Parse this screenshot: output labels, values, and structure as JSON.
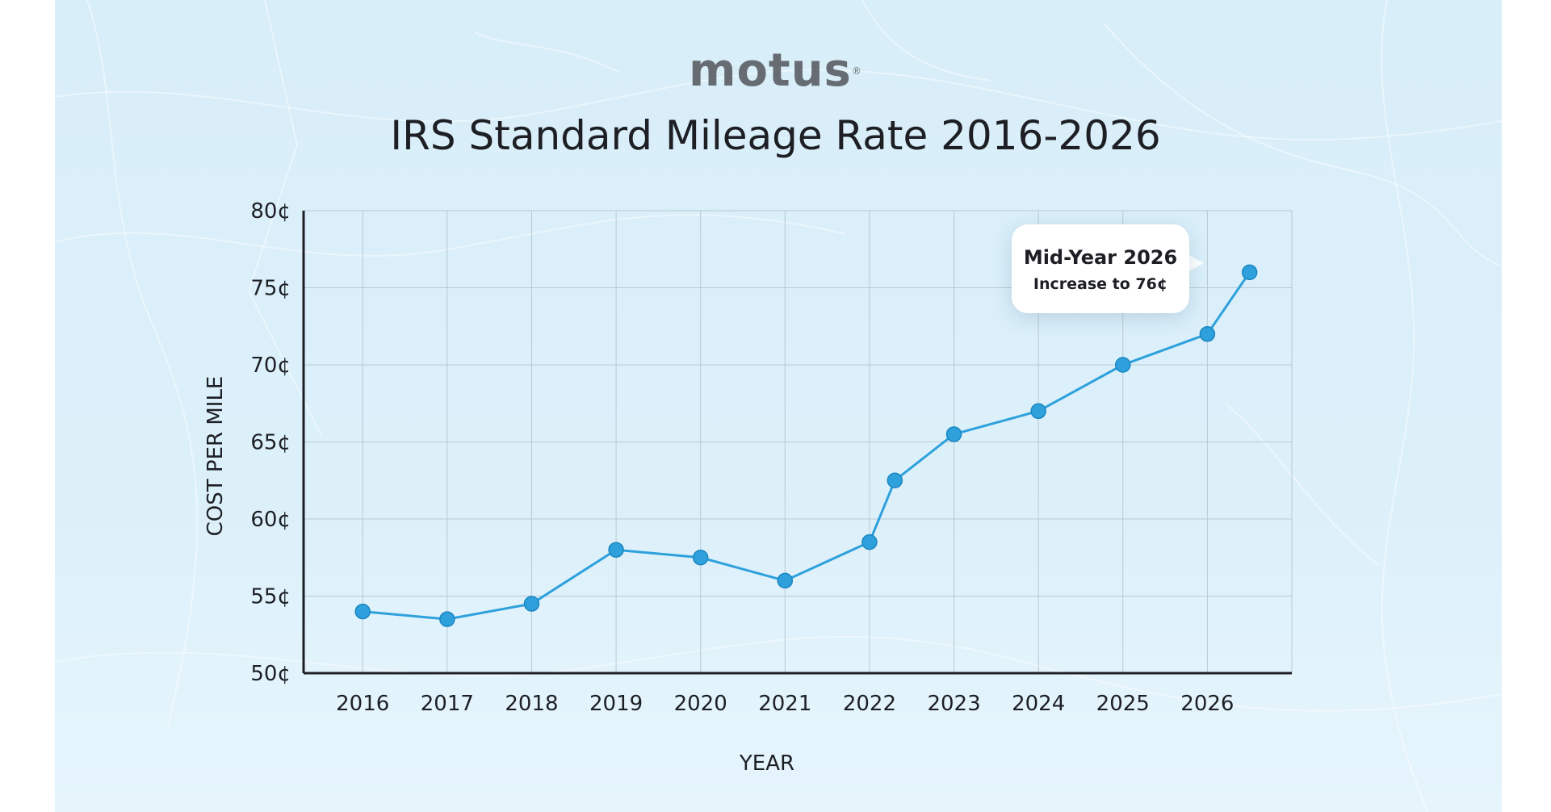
{
  "brand": {
    "logo_text": "motus",
    "logo_mark": "®"
  },
  "colors": {
    "line": "#2ea1dc",
    "point": "#2ea1dc",
    "grid": "#b9c9d3",
    "axis": "#1d1f24",
    "text": "#1d1f24",
    "logo": "#666c72"
  },
  "chart_data": {
    "type": "line",
    "title": "IRS Standard Mileage Rate 2016-2026",
    "xlabel": "YEAR",
    "ylabel": "COST PER MILE",
    "x_ticks": [
      "2016",
      "2017",
      "2018",
      "2019",
      "2020",
      "2021",
      "2022",
      "2023",
      "2024",
      "2025",
      "2026"
    ],
    "y_ticks": [
      "50¢",
      "55¢",
      "60¢",
      "65¢",
      "70¢",
      "75¢",
      "80¢"
    ],
    "y_tick_values": [
      50,
      55,
      60,
      65,
      70,
      75,
      80
    ],
    "ylim": [
      50,
      80
    ],
    "xlim": [
      2015.3,
      2027.0
    ],
    "grid": true,
    "series": [
      {
        "points": [
          {
            "x": 2016,
            "y": 54
          },
          {
            "x": 2017,
            "y": 53.5
          },
          {
            "x": 2018,
            "y": 54.5
          },
          {
            "x": 2019,
            "y": 58
          },
          {
            "x": 2020,
            "y": 57.5
          },
          {
            "x": 2021,
            "y": 56
          },
          {
            "x": 2022,
            "y": 58.5
          },
          {
            "x": 2022.3,
            "y": 62.5
          },
          {
            "x": 2023,
            "y": 65.5
          },
          {
            "x": 2024,
            "y": 67
          },
          {
            "x": 2025,
            "y": 70
          },
          {
            "x": 2026,
            "y": 72
          },
          {
            "x": 2026.5,
            "y": 76
          }
        ]
      }
    ],
    "annotation": {
      "title": "Mid-Year 2026",
      "text": "Increase to 76¢",
      "x": 2026.5,
      "y": 76
    }
  }
}
